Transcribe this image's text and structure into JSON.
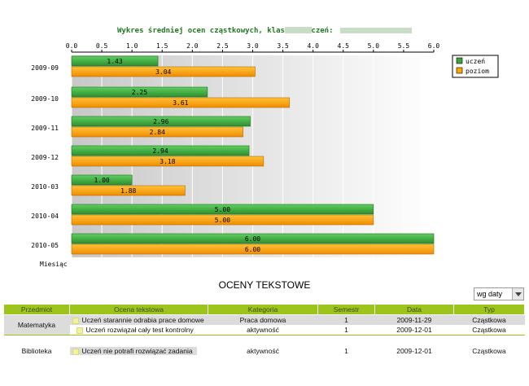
{
  "chart_data": {
    "type": "bar",
    "orientation": "horizontal",
    "title": "Wykres średniej ocen cząstkowych,  klasa:      , uczeń:",
    "ylabel": "Miesiąc",
    "xlim": [
      0,
      6
    ],
    "xticks": [
      "0.0",
      "0.5",
      "1.0",
      "1.5",
      "2.0",
      "2.5",
      "3.0",
      "3.5",
      "4.0",
      "4.5",
      "5.0",
      "5.5",
      "6.0"
    ],
    "categories": [
      "2009-09",
      "2009-10",
      "2009-11",
      "2009-12",
      "2010-03",
      "2010-04",
      "2010-05"
    ],
    "series": [
      {
        "name": "uczeń",
        "color": "#3aa63a",
        "values": [
          1.43,
          2.25,
          2.96,
          2.94,
          1.0,
          5.0,
          6.0
        ],
        "labels": [
          "1.43",
          "2.25",
          "2.96",
          "2.94",
          "1.00",
          "5.00",
          "6.00"
        ]
      },
      {
        "name": "poziom",
        "color": "#ffa500",
        "values": [
          3.04,
          3.61,
          2.84,
          3.18,
          1.88,
          5.0,
          6.0
        ],
        "labels": [
          "3.04",
          "3.61",
          "2.84",
          "3.18",
          "1.88",
          "5.00",
          "6.00"
        ]
      }
    ],
    "legend": "right",
    "grid": true
  },
  "section_title": "OCENY TEKSTOWE",
  "sort_select": {
    "value": "wg daty"
  },
  "table": {
    "headers": [
      "Przedmiot",
      "Ocena tekstowa",
      "Kategoria",
      "Semestr",
      "Data",
      "Typ"
    ],
    "rows": [
      {
        "subject": "Matematyka",
        "grade": "Uczeń starannie odrabia prace domowe",
        "category": "Praca domowa",
        "semester": "1",
        "date": "2009-11-29",
        "type": "Cząstkowa"
      },
      {
        "subject": "",
        "grade": "Uczeń rozwiązał cały test kontrolny",
        "category": "aktywność",
        "semester": "1",
        "date": "2009-12-01",
        "type": "Cząstkowa"
      },
      {
        "subject": "Biblioteka",
        "grade": "Uczeń nie potrafi rozwiązać zadania",
        "category": "aktywność",
        "semester": "1",
        "date": "2009-12-01",
        "type": "Cząstkowa"
      }
    ]
  }
}
